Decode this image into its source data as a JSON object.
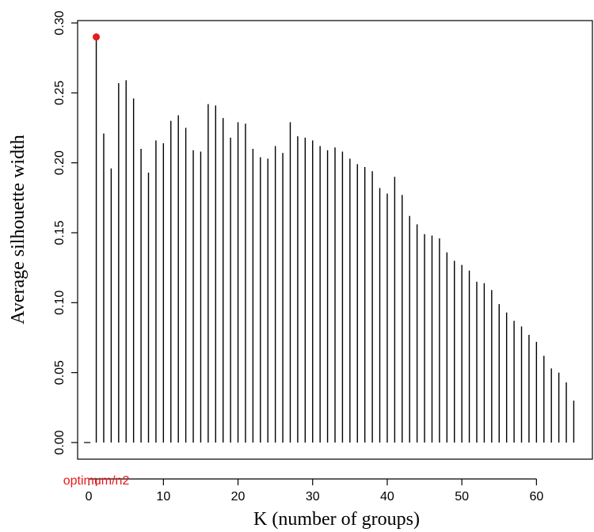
{
  "chart_data": {
    "type": "bar",
    "xlabel": "K (number of groups)",
    "ylabel": "Average silhouette width",
    "xlim": [
      -1.5,
      67.5
    ],
    "ylim": [
      0.0,
      0.3
    ],
    "x_ticks": [
      0,
      10,
      20,
      30,
      40,
      50,
      60
    ],
    "y_ticks": [
      "0.00",
      "0.05",
      "0.10",
      "0.15",
      "0.20",
      "0.25",
      "0.30"
    ],
    "x": [
      1,
      2,
      3,
      4,
      5,
      6,
      7,
      8,
      9,
      10,
      11,
      12,
      13,
      14,
      15,
      16,
      17,
      18,
      19,
      20,
      21,
      22,
      23,
      24,
      25,
      26,
      27,
      28,
      29,
      30,
      31,
      32,
      33,
      34,
      35,
      36,
      37,
      38,
      39,
      40,
      41,
      42,
      43,
      44,
      45,
      46,
      47,
      48,
      49,
      50,
      51,
      52,
      53,
      54,
      55,
      56,
      57,
      58,
      59,
      60,
      61,
      62,
      63,
      64,
      65,
      66
    ],
    "values": [
      0.29,
      0.221,
      0.196,
      0.257,
      0.259,
      0.246,
      0.21,
      0.193,
      0.216,
      0.214,
      0.23,
      0.234,
      0.225,
      0.209,
      0.208,
      0.242,
      0.241,
      0.232,
      0.218,
      0.229,
      0.228,
      0.21,
      0.204,
      0.203,
      0.212,
      0.207,
      0.229,
      0.219,
      0.218,
      0.216,
      0.212,
      0.209,
      0.211,
      0.208,
      0.203,
      0.199,
      0.197,
      0.194,
      0.182,
      0.178,
      0.19,
      0.177,
      0.162,
      0.156,
      0.149,
      0.148,
      0.146,
      0.136,
      0.13,
      0.127,
      0.123,
      0.115,
      0.114,
      0.109,
      0.099,
      0.093,
      0.087,
      0.083,
      0.077,
      0.072,
      0.062,
      0.053,
      0.05,
      0.043,
      0.03,
      0
    ],
    "optimum": {
      "k": 1,
      "value": 0.29,
      "label": "optimum/n2",
      "color": "#e8191c"
    },
    "bar_color": "#000000",
    "grid": false,
    "legend": "none"
  }
}
